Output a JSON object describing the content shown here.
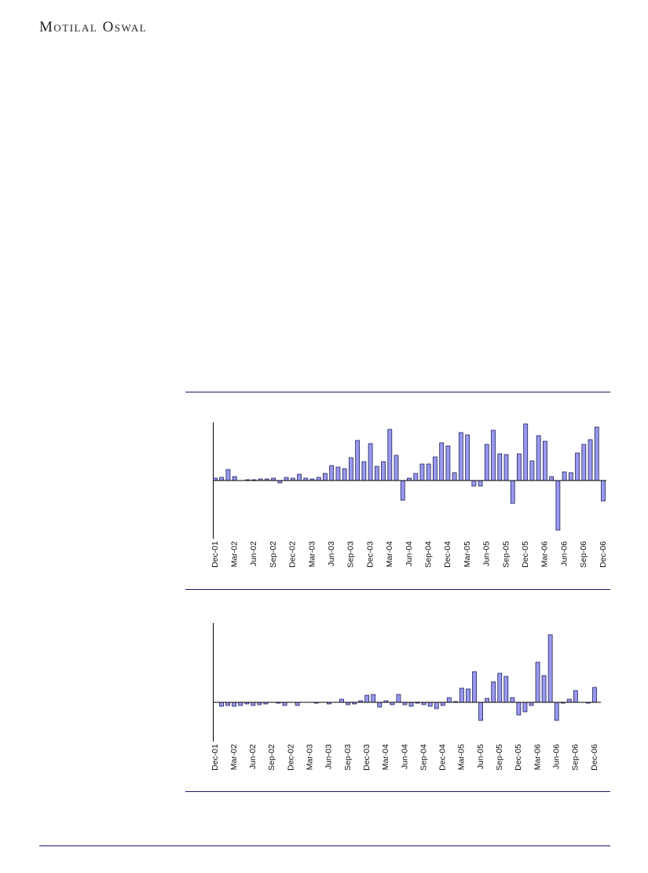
{
  "header": {
    "brand": "Motilal Oswal"
  },
  "chart_data": [
    {
      "type": "bar",
      "color": "#9999ee",
      "ylim": [
        -7.4,
        7.4
      ],
      "categories": [
        "Dec-01",
        null,
        null,
        "Mar-02",
        null,
        null,
        "Jun-02",
        null,
        null,
        "Sep-02",
        null,
        null,
        "Dec-02",
        null,
        null,
        "Mar-03",
        null,
        null,
        "Jun-03",
        null,
        null,
        "Sep-03",
        null,
        null,
        "Dec-03",
        null,
        null,
        "Mar-04",
        null,
        null,
        "Jun-04",
        null,
        null,
        "Sep-04",
        null,
        null,
        "Dec-04",
        null,
        null,
        "Mar-05",
        null,
        null,
        "Jun-05",
        null,
        null,
        "Sep-05",
        null,
        null,
        "Dec-05",
        null,
        null,
        "Mar-06",
        null,
        null,
        "Jun-06",
        null,
        null,
        "Sep-06",
        null,
        null,
        "Dec-06"
      ],
      "values": [
        0.3,
        0.4,
        1.4,
        0.5,
        0,
        0.1,
        0.1,
        0.2,
        0.2,
        0.3,
        -0.3,
        0.4,
        0.3,
        0.8,
        0.3,
        0.2,
        0.4,
        0.9,
        1.9,
        1.7,
        1.5,
        2.9,
        5.1,
        2.4,
        4.7,
        1.8,
        2.4,
        6.5,
        3.2,
        -2.5,
        0.3,
        0.9,
        2.1,
        2.1,
        3.0,
        4.8,
        4.4,
        1.0,
        6.1,
        5.8,
        -0.7,
        -0.7,
        4.6,
        6.4,
        3.4,
        3.3,
        -2.9,
        3.4,
        7.2,
        2.5,
        5.7,
        5.0,
        0.5,
        -6.3,
        1.1,
        1.0,
        3.5,
        4.6,
        5.2,
        6.8,
        -2.6
      ]
    },
    {
      "type": "bar",
      "color": "#9999ee",
      "ylim": [
        -5.0,
        10.1
      ],
      "categories": [
        "Dec-01",
        null,
        null,
        "Mar-02",
        null,
        null,
        "Jun-02",
        null,
        null,
        "Sep-02",
        null,
        null,
        "Dec-02",
        null,
        null,
        "Mar-03",
        null,
        null,
        "Jun-03",
        null,
        null,
        "Sep-03",
        null,
        null,
        "Dec-03",
        null,
        null,
        "Mar-04",
        null,
        null,
        "Jun-04",
        null,
        null,
        "Sep-04",
        null,
        null,
        "Dec-04",
        null,
        null,
        "Mar-05",
        null,
        null,
        "Jun-05",
        null,
        null,
        "Sep-05",
        null,
        null,
        "Dec-05",
        null,
        null,
        "Mar-06",
        null,
        null,
        "Jun-06",
        null,
        null,
        "Sep-06",
        null,
        null,
        "Dec-06"
      ],
      "values": [
        0,
        -0.5,
        -0.4,
        -0.5,
        -0.4,
        -0.2,
        -0.4,
        -0.3,
        -0.2,
        0,
        -0.1,
        -0.4,
        0,
        -0.4,
        0,
        0,
        -0.1,
        0,
        -0.2,
        0,
        0.4,
        -0.3,
        -0.2,
        0.2,
        0.9,
        1.0,
        -0.6,
        0.2,
        -0.3,
        1.0,
        -0.3,
        -0.5,
        -0.1,
        -0.3,
        -0.5,
        -0.8,
        -0.4,
        0.6,
        0.1,
        1.8,
        1.7,
        3.9,
        -2.3,
        0.5,
        2.6,
        3.7,
        3.3,
        0.6,
        -1.6,
        -1.2,
        -0.4,
        5.1,
        3.4,
        8.6,
        -2.3,
        -0.1,
        0.4,
        1.5,
        0,
        -0.1,
        1.9
      ]
    }
  ]
}
